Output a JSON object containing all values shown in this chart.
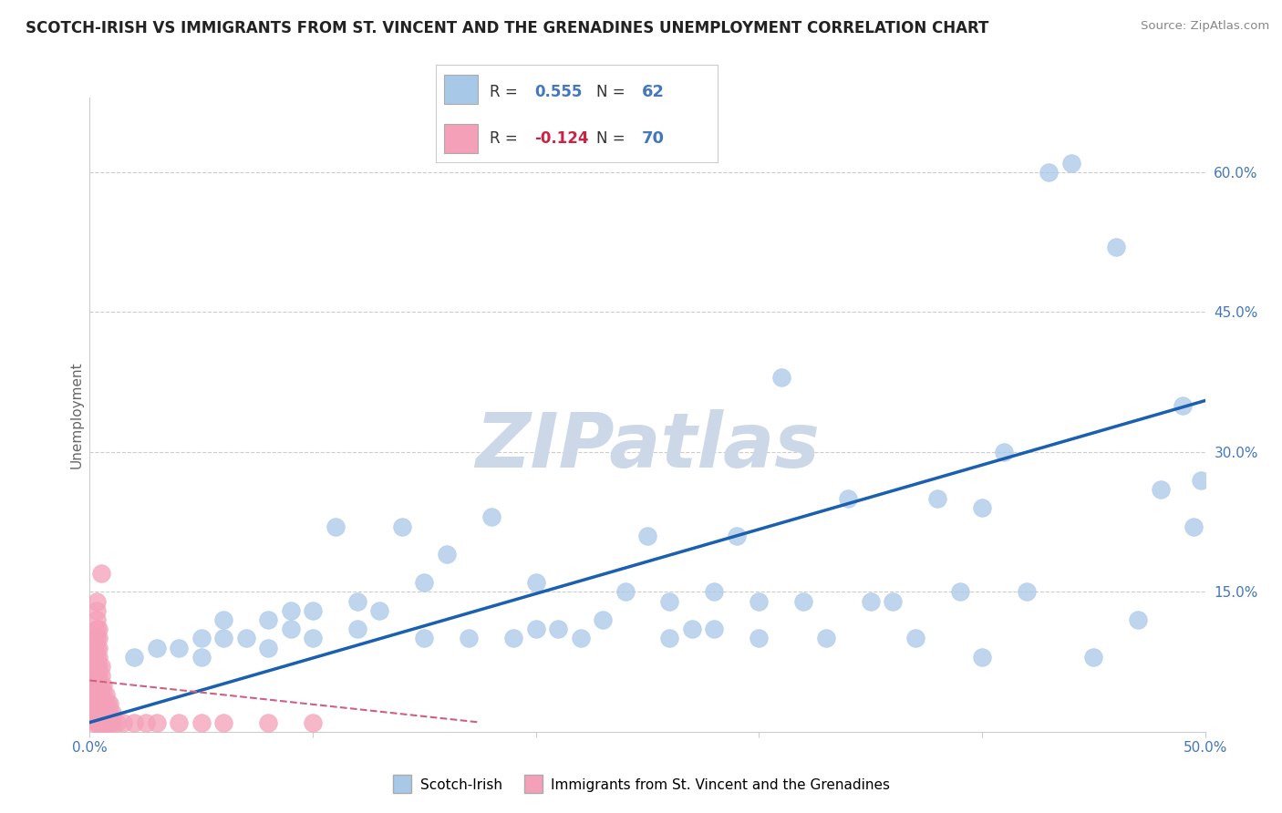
{
  "title": "SCOTCH-IRISH VS IMMIGRANTS FROM ST. VINCENT AND THE GRENADINES UNEMPLOYMENT CORRELATION CHART",
  "source_text": "Source: ZipAtlas.com",
  "ylabel": "Unemployment",
  "xlim": [
    0.0,
    0.5
  ],
  "ylim": [
    0.0,
    0.68
  ],
  "yticks_right": [
    0.15,
    0.3,
    0.45,
    0.6
  ],
  "ytick_right_labels": [
    "15.0%",
    "30.0%",
    "45.0%",
    "60.0%"
  ],
  "blue_R": "0.555",
  "blue_N": "62",
  "pink_R": "-0.124",
  "pink_N": "70",
  "blue_color": "#a8c8e8",
  "blue_edge_color": "#a8c8e8",
  "blue_line_color": "#1a5fb0",
  "pink_color": "#f4a0b8",
  "pink_edge_color": "#f4a0b8",
  "pink_line_color": "#d06080",
  "watermark": "ZIPatlas",
  "watermark_color": "#ccd8e8",
  "legend_blue_label": "Scotch-Irish",
  "legend_pink_label": "Immigrants from St. Vincent and the Grenadines",
  "grid_color": "#cccccc",
  "blue_line_x0": 0.0,
  "blue_line_y0": 0.01,
  "blue_line_x1": 0.5,
  "blue_line_y1": 0.355,
  "pink_line_x0": 0.0,
  "pink_line_y0": 0.055,
  "pink_line_x1": 0.175,
  "pink_line_y1": 0.01,
  "blue_scatter_x": [
    0.02,
    0.03,
    0.04,
    0.05,
    0.05,
    0.06,
    0.06,
    0.07,
    0.08,
    0.08,
    0.09,
    0.09,
    0.1,
    0.1,
    0.11,
    0.12,
    0.12,
    0.13,
    0.14,
    0.15,
    0.15,
    0.16,
    0.17,
    0.18,
    0.19,
    0.2,
    0.2,
    0.21,
    0.22,
    0.23,
    0.24,
    0.25,
    0.26,
    0.26,
    0.27,
    0.28,
    0.28,
    0.29,
    0.3,
    0.3,
    0.31,
    0.32,
    0.33,
    0.34,
    0.35,
    0.36,
    0.37,
    0.38,
    0.39,
    0.4,
    0.4,
    0.41,
    0.42,
    0.43,
    0.44,
    0.45,
    0.46,
    0.47,
    0.48,
    0.49,
    0.495,
    0.498
  ],
  "blue_scatter_y": [
    0.08,
    0.09,
    0.09,
    0.08,
    0.1,
    0.1,
    0.12,
    0.1,
    0.09,
    0.12,
    0.11,
    0.13,
    0.1,
    0.13,
    0.22,
    0.11,
    0.14,
    0.13,
    0.22,
    0.1,
    0.16,
    0.19,
    0.1,
    0.23,
    0.1,
    0.11,
    0.16,
    0.11,
    0.1,
    0.12,
    0.15,
    0.21,
    0.1,
    0.14,
    0.11,
    0.11,
    0.15,
    0.21,
    0.1,
    0.14,
    0.38,
    0.14,
    0.1,
    0.25,
    0.14,
    0.14,
    0.1,
    0.25,
    0.15,
    0.24,
    0.08,
    0.3,
    0.15,
    0.6,
    0.61,
    0.08,
    0.52,
    0.12,
    0.26,
    0.35,
    0.22,
    0.27
  ],
  "pink_scatter_x": [
    0.002,
    0.002,
    0.002,
    0.002,
    0.002,
    0.002,
    0.002,
    0.002,
    0.002,
    0.002,
    0.003,
    0.003,
    0.003,
    0.003,
    0.003,
    0.003,
    0.003,
    0.003,
    0.003,
    0.003,
    0.003,
    0.003,
    0.003,
    0.003,
    0.004,
    0.004,
    0.004,
    0.004,
    0.004,
    0.004,
    0.004,
    0.004,
    0.004,
    0.004,
    0.004,
    0.005,
    0.005,
    0.005,
    0.005,
    0.005,
    0.005,
    0.005,
    0.005,
    0.006,
    0.006,
    0.006,
    0.006,
    0.006,
    0.007,
    0.007,
    0.007,
    0.007,
    0.008,
    0.008,
    0.008,
    0.009,
    0.009,
    0.009,
    0.01,
    0.01,
    0.012,
    0.015,
    0.02,
    0.025,
    0.03,
    0.04,
    0.05,
    0.06,
    0.08,
    0.1
  ],
  "pink_scatter_y": [
    0.01,
    0.02,
    0.03,
    0.04,
    0.05,
    0.06,
    0.07,
    0.08,
    0.09,
    0.1,
    0.01,
    0.02,
    0.03,
    0.04,
    0.05,
    0.06,
    0.07,
    0.08,
    0.09,
    0.1,
    0.11,
    0.12,
    0.13,
    0.14,
    0.01,
    0.02,
    0.03,
    0.04,
    0.05,
    0.06,
    0.07,
    0.08,
    0.09,
    0.1,
    0.11,
    0.01,
    0.02,
    0.03,
    0.04,
    0.05,
    0.06,
    0.07,
    0.17,
    0.01,
    0.02,
    0.03,
    0.04,
    0.05,
    0.01,
    0.02,
    0.03,
    0.04,
    0.01,
    0.02,
    0.03,
    0.01,
    0.02,
    0.03,
    0.01,
    0.02,
    0.01,
    0.01,
    0.01,
    0.01,
    0.01,
    0.01,
    0.01,
    0.01,
    0.01,
    0.01
  ]
}
